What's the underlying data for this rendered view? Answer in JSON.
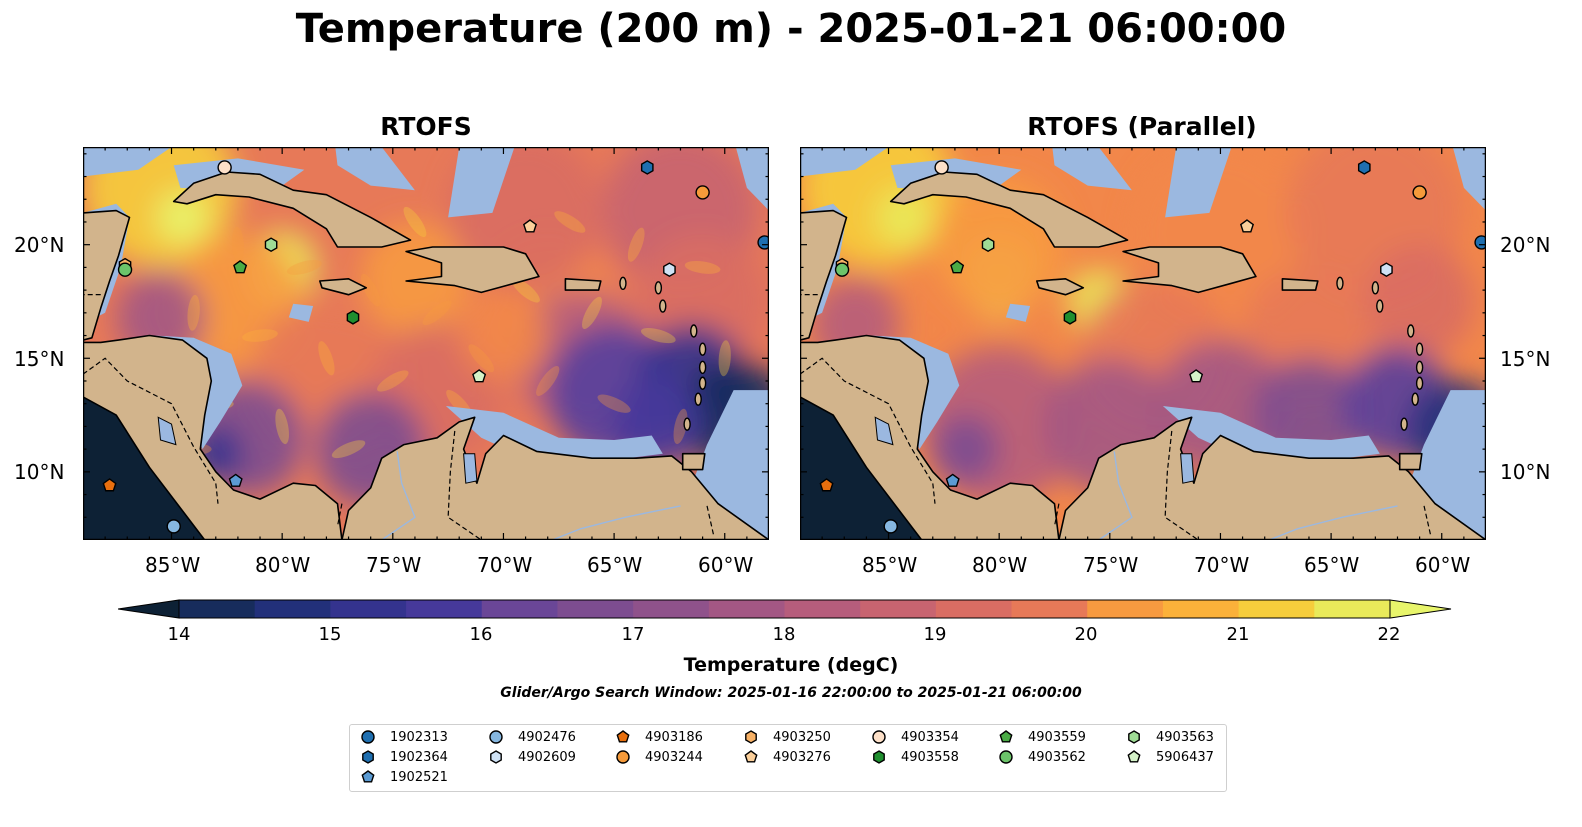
{
  "title": "Temperature (200 m) - 2025-01-21 06:00:00",
  "panels": [
    {
      "title": "RTOFS",
      "variant": "rtofs"
    },
    {
      "title": "RTOFS (Parallel)",
      "variant": "parallel"
    }
  ],
  "longitude_ticks": [
    "85°W",
    "80°W",
    "75°W",
    "70°W",
    "65°W",
    "60°W"
  ],
  "latitude_ticks": [
    "20°N",
    "15°N",
    "10°N"
  ],
  "colorbar": {
    "label": "Temperature (degC)",
    "ticks": [
      "14",
      "15",
      "16",
      "17",
      "18",
      "19",
      "20",
      "21",
      "22"
    ],
    "min": 14,
    "max": 22,
    "step": 0.5,
    "extend": "both"
  },
  "search_window": "Glider/Argo Search Window: 2025-01-16 22:00:00 to 2025-01-21 06:00:00",
  "colors": {
    "land": "#d2b48c",
    "shallow_water": "#9bb8e0",
    "deep_cold": "#0d2135",
    "ramp": [
      "#0d2135",
      "#172c5c",
      "#22307a",
      "#34338e",
      "#46399a",
      "#573f9c",
      "#6a4697",
      "#7d4d90",
      "#8f528b",
      "#a35784",
      "#b65d7c",
      "#c86470",
      "#d96d63",
      "#e77958",
      "#f2874a",
      "#f79a40",
      "#fbb13a",
      "#f6cd3c",
      "#e9ea5a",
      "#e8f56b"
    ]
  },
  "legend": [
    {
      "id": "1902313",
      "marker": "circle",
      "color": "#1f6fb0"
    },
    {
      "id": "1902364",
      "marker": "hexagon",
      "color": "#1f6fb0"
    },
    {
      "id": "1902521",
      "marker": "pentagon",
      "color": "#5b9bd3"
    },
    {
      "id": "4902476",
      "marker": "circle",
      "color": "#86b7e0"
    },
    {
      "id": "4902609",
      "marker": "hexagon",
      "color": "#cfe2f5"
    },
    {
      "id": "4903186",
      "marker": "pentagon",
      "color": "#e86f0e"
    },
    {
      "id": "4903244",
      "marker": "circle",
      "color": "#f59a3a"
    },
    {
      "id": "4903250",
      "marker": "hexagon",
      "color": "#f7b166"
    },
    {
      "id": "4903276",
      "marker": "pentagon",
      "color": "#fbcf9a"
    },
    {
      "id": "4903354",
      "marker": "circle",
      "color": "#fde0c8"
    },
    {
      "id": "4903558",
      "marker": "hexagon",
      "color": "#1f8f2f"
    },
    {
      "id": "4903559",
      "marker": "pentagon",
      "color": "#4aab45"
    },
    {
      "id": "4903562",
      "marker": "circle",
      "color": "#6cc46a"
    },
    {
      "id": "4903563",
      "marker": "hexagon",
      "color": "#9fdc95"
    },
    {
      "id": "5906437",
      "marker": "pentagon",
      "color": "#d5f2c8"
    }
  ],
  "map_markers": [
    {
      "id": "1902313",
      "lon": -58.2,
      "lat": 20.1
    },
    {
      "id": "1902364",
      "lon": -63.5,
      "lat": 23.4
    },
    {
      "id": "4902476",
      "lon": -84.9,
      "lat": 7.6
    },
    {
      "id": "4902609",
      "lon": -62.5,
      "lat": 18.9
    },
    {
      "id": "4903186",
      "lon": -87.8,
      "lat": 9.4
    },
    {
      "id": "4903244",
      "lon": -61.0,
      "lat": 22.3
    },
    {
      "id": "4903250",
      "lon": -87.1,
      "lat": 19.1
    },
    {
      "id": "4903276",
      "lon": -68.8,
      "lat": 20.8
    },
    {
      "id": "4903354",
      "lon": -82.6,
      "lat": 23.4
    },
    {
      "id": "4903558",
      "lon": -76.8,
      "lat": 16.8
    },
    {
      "id": "4903559",
      "lon": -81.9,
      "lat": 19.0
    },
    {
      "id": "4903562",
      "lon": -87.1,
      "lat": 18.9
    },
    {
      "id": "4903563",
      "lon": -80.5,
      "lat": 20.0
    },
    {
      "id": "5906437",
      "lon": -71.1,
      "lat": 14.2
    },
    {
      "id": "1902521",
      "lon": -82.1,
      "lat": 9.6
    }
  ]
}
